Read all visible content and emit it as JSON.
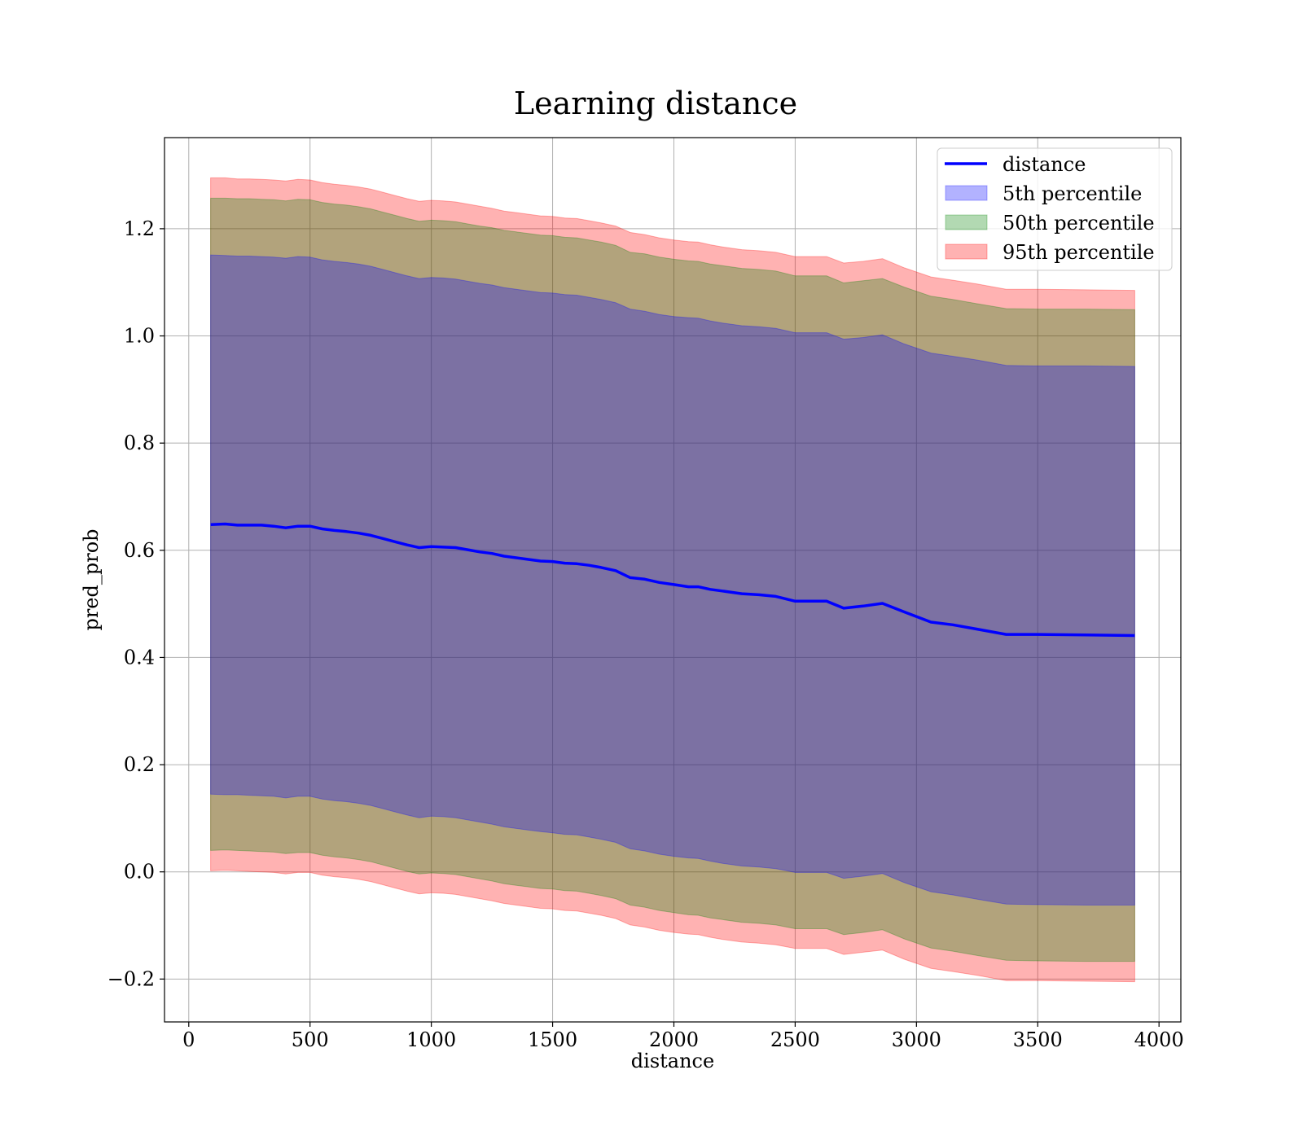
{
  "chart_data": {
    "type": "line",
    "title": "Learning distance",
    "xlabel": "distance",
    "ylabel": "pred_prob",
    "xlim": [
      -100,
      4090
    ],
    "ylim": [
      -0.28,
      1.37
    ],
    "x_ticks": [
      0,
      500,
      1000,
      1500,
      2000,
      2500,
      3000,
      3500,
      4000
    ],
    "x_tick_labels": [
      "0",
      "500",
      "1000",
      "1500",
      "2000",
      "2500",
      "3000",
      "3500",
      "4000"
    ],
    "y_ticks": [
      -0.2,
      0.0,
      0.2,
      0.4,
      0.6,
      0.8,
      1.0,
      1.2
    ],
    "y_tick_labels": [
      "−0.2",
      "0.0",
      "0.2",
      "0.4",
      "0.6",
      "0.8",
      "1.0",
      "1.2"
    ],
    "grid": true,
    "legend_position": "top-right",
    "x": [
      90,
      150,
      200,
      250,
      300,
      350,
      400,
      450,
      500,
      550,
      600,
      650,
      700,
      750,
      800,
      850,
      900,
      950,
      1000,
      1050,
      1100,
      1150,
      1200,
      1250,
      1300,
      1350,
      1400,
      1450,
      1500,
      1550,
      1600,
      1650,
      1700,
      1760,
      1820,
      1880,
      1940,
      2000,
      2060,
      2100,
      2150,
      2200,
      2280,
      2350,
      2420,
      2500,
      2560,
      2630,
      2700,
      2780,
      2860,
      2950,
      3060,
      3150,
      3250,
      3370,
      3500,
      3700,
      3900
    ],
    "series": [
      {
        "name": "distance",
        "kind": "line",
        "color": "#0000ff",
        "values": [
          0.648,
          0.649,
          0.647,
          0.647,
          0.647,
          0.645,
          0.642,
          0.645,
          0.645,
          0.64,
          0.637,
          0.635,
          0.632,
          0.628,
          0.622,
          0.616,
          0.61,
          0.605,
          0.607,
          0.606,
          0.605,
          0.601,
          0.597,
          0.594,
          0.589,
          0.586,
          0.583,
          0.58,
          0.579,
          0.576,
          0.575,
          0.572,
          0.568,
          0.562,
          0.549,
          0.546,
          0.54,
          0.536,
          0.532,
          0.532,
          0.527,
          0.524,
          0.519,
          0.517,
          0.514,
          0.505,
          0.505,
          0.505,
          0.492,
          0.496,
          0.501,
          0.485,
          0.466,
          0.461,
          0.453,
          0.443,
          0.443,
          0.442,
          0.441
        ]
      },
      {
        "name": "5th percentile",
        "kind": "band",
        "color": "#0000ff",
        "upper": [
          1.151,
          1.15,
          1.149,
          1.149,
          1.148,
          1.147,
          1.145,
          1.148,
          1.147,
          1.142,
          1.139,
          1.137,
          1.134,
          1.13,
          1.124,
          1.118,
          1.112,
          1.107,
          1.109,
          1.108,
          1.106,
          1.102,
          1.098,
          1.095,
          1.09,
          1.087,
          1.084,
          1.081,
          1.08,
          1.077,
          1.076,
          1.072,
          1.068,
          1.062,
          1.05,
          1.046,
          1.04,
          1.036,
          1.034,
          1.033,
          1.028,
          1.024,
          1.019,
          1.017,
          1.014,
          1.006,
          1.006,
          1.006,
          0.994,
          0.997,
          1.002,
          0.985,
          0.968,
          0.962,
          0.955,
          0.945,
          0.944,
          0.944,
          0.943
        ],
        "lower": [
          0.145,
          0.144,
          0.144,
          0.143,
          0.142,
          0.141,
          0.138,
          0.141,
          0.141,
          0.136,
          0.133,
          0.131,
          0.128,
          0.124,
          0.118,
          0.112,
          0.106,
          0.101,
          0.104,
          0.103,
          0.101,
          0.097,
          0.093,
          0.089,
          0.084,
          0.081,
          0.078,
          0.075,
          0.073,
          0.07,
          0.069,
          0.065,
          0.061,
          0.055,
          0.043,
          0.039,
          0.033,
          0.029,
          0.026,
          0.025,
          0.02,
          0.016,
          0.011,
          0.009,
          0.006,
          -0.001,
          -0.001,
          -0.001,
          -0.012,
          -0.008,
          -0.003,
          -0.02,
          -0.037,
          -0.043,
          -0.051,
          -0.06,
          -0.061,
          -0.062,
          -0.062
        ]
      },
      {
        "name": "50th percentile",
        "kind": "band",
        "color": "#008000",
        "upper": [
          1.257,
          1.257,
          1.256,
          1.256,
          1.255,
          1.254,
          1.252,
          1.255,
          1.254,
          1.249,
          1.246,
          1.244,
          1.241,
          1.237,
          1.231,
          1.225,
          1.219,
          1.214,
          1.216,
          1.215,
          1.213,
          1.209,
          1.205,
          1.202,
          1.197,
          1.194,
          1.191,
          1.188,
          1.187,
          1.184,
          1.183,
          1.179,
          1.175,
          1.169,
          1.156,
          1.153,
          1.147,
          1.143,
          1.14,
          1.139,
          1.134,
          1.131,
          1.126,
          1.124,
          1.121,
          1.112,
          1.112,
          1.112,
          1.099,
          1.103,
          1.107,
          1.091,
          1.074,
          1.068,
          1.06,
          1.051,
          1.05,
          1.05,
          1.049
        ],
        "lower": [
          0.04,
          0.041,
          0.04,
          0.039,
          0.038,
          0.037,
          0.034,
          0.036,
          0.036,
          0.031,
          0.028,
          0.026,
          0.023,
          0.019,
          0.013,
          0.007,
          0.001,
          -0.004,
          -0.002,
          -0.003,
          -0.005,
          -0.009,
          -0.013,
          -0.017,
          -0.022,
          -0.025,
          -0.028,
          -0.031,
          -0.032,
          -0.035,
          -0.036,
          -0.04,
          -0.044,
          -0.05,
          -0.062,
          -0.066,
          -0.072,
          -0.076,
          -0.08,
          -0.081,
          -0.086,
          -0.089,
          -0.094,
          -0.096,
          -0.099,
          -0.106,
          -0.106,
          -0.106,
          -0.117,
          -0.113,
          -0.108,
          -0.125,
          -0.142,
          -0.148,
          -0.156,
          -0.165,
          -0.166,
          -0.167,
          -0.167
        ]
      },
      {
        "name": "95th percentile",
        "kind": "band",
        "color": "#ff0000",
        "upper": [
          1.295,
          1.295,
          1.293,
          1.293,
          1.292,
          1.291,
          1.289,
          1.292,
          1.291,
          1.286,
          1.283,
          1.281,
          1.278,
          1.274,
          1.268,
          1.262,
          1.256,
          1.251,
          1.253,
          1.252,
          1.25,
          1.246,
          1.242,
          1.238,
          1.233,
          1.23,
          1.227,
          1.224,
          1.223,
          1.22,
          1.219,
          1.215,
          1.211,
          1.205,
          1.193,
          1.189,
          1.183,
          1.179,
          1.176,
          1.175,
          1.17,
          1.166,
          1.161,
          1.159,
          1.156,
          1.148,
          1.148,
          1.148,
          1.136,
          1.139,
          1.144,
          1.127,
          1.11,
          1.104,
          1.097,
          1.087,
          1.087,
          1.086,
          1.085
        ],
        "lower": [
          0.002,
          0.003,
          0.002,
          0.001,
          0.0,
          -0.001,
          -0.004,
          -0.001,
          -0.001,
          -0.006,
          -0.009,
          -0.011,
          -0.014,
          -0.018,
          -0.024,
          -0.03,
          -0.036,
          -0.041,
          -0.039,
          -0.04,
          -0.042,
          -0.046,
          -0.05,
          -0.054,
          -0.059,
          -0.062,
          -0.065,
          -0.068,
          -0.069,
          -0.072,
          -0.073,
          -0.077,
          -0.081,
          -0.087,
          -0.099,
          -0.103,
          -0.109,
          -0.113,
          -0.116,
          -0.117,
          -0.122,
          -0.126,
          -0.131,
          -0.133,
          -0.136,
          -0.143,
          -0.143,
          -0.143,
          -0.154,
          -0.15,
          -0.146,
          -0.163,
          -0.18,
          -0.186,
          -0.193,
          -0.203,
          -0.203,
          -0.204,
          -0.205
        ]
      }
    ],
    "legend": [
      "distance",
      "5th percentile",
      "50th percentile",
      "95th percentile"
    ]
  }
}
